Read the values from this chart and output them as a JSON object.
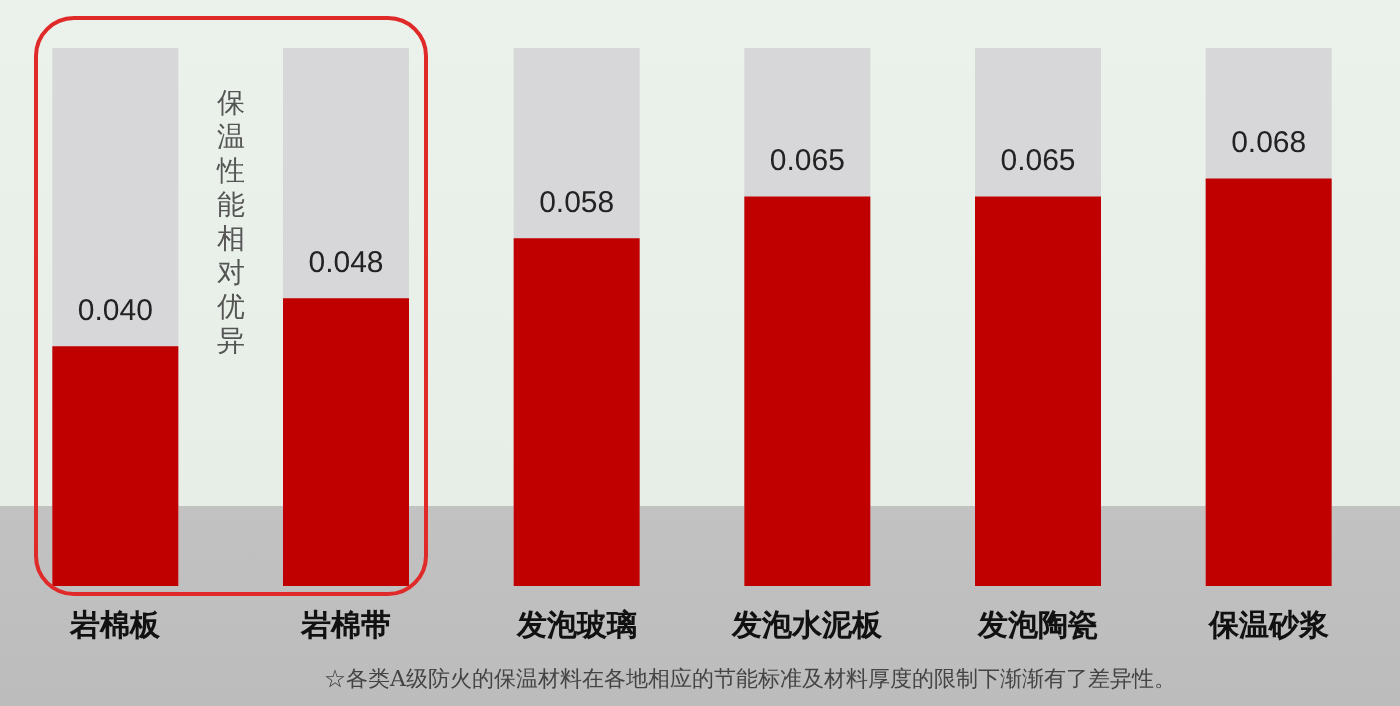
{
  "chart_data": {
    "type": "bar",
    "categories": [
      "岩棉板",
      "岩棉带",
      "发泡玻璃",
      "发泡水泥板",
      "发泡陶瓷",
      "保温砂浆"
    ],
    "values": [
      0.04,
      0.048,
      0.058,
      0.065,
      0.065,
      0.068
    ],
    "value_labels": [
      "0.040",
      "0.048",
      "0.058",
      "0.065",
      "0.065",
      "0.068"
    ],
    "color": "#c00000",
    "annotations": [
      "保温性能相对优异",
      "☆各类A级防火的保温材料在各地相应的节能标准及材料厚度的限制下渐渐有了差异性。"
    ]
  }
}
